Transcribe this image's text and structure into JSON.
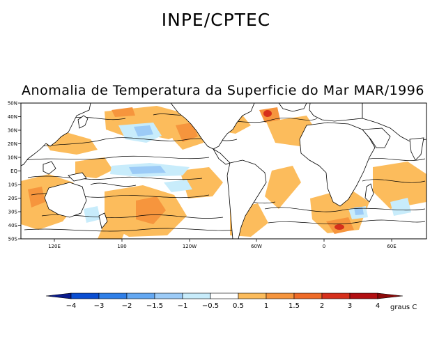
{
  "header": {
    "organization": "INPE/CPTEC"
  },
  "map": {
    "title": "Anomalia de Temperatura da Superficie do Mar MAR/1996",
    "lat_labels": [
      "50N",
      "40N",
      "30N",
      "20N",
      "10N",
      "EQ",
      "10S",
      "20S",
      "30S",
      "40S",
      "50S"
    ],
    "lon_labels": [
      "120E",
      "180",
      "120W",
      "60W",
      "0",
      "60E"
    ],
    "land_color": "#ffffff",
    "ocean_base_color": "#ffffff"
  },
  "colorbar": {
    "unit": "graus C",
    "tick_labels": [
      "-4",
      "-3",
      "-2",
      "-1.5",
      "-1",
      "-0.5",
      "0.5",
      "1",
      "1.5",
      "2",
      "3",
      "4"
    ],
    "colors": [
      "#0a1a8c",
      "#0a4ed2",
      "#2f7fe8",
      "#64a8f2",
      "#9ccbf7",
      "#c8ecfb",
      "#ffffff",
      "#fcbc5c",
      "#f6953d",
      "#ef6b28",
      "#d6301c",
      "#b20f12",
      "#8c0a0a"
    ]
  }
}
